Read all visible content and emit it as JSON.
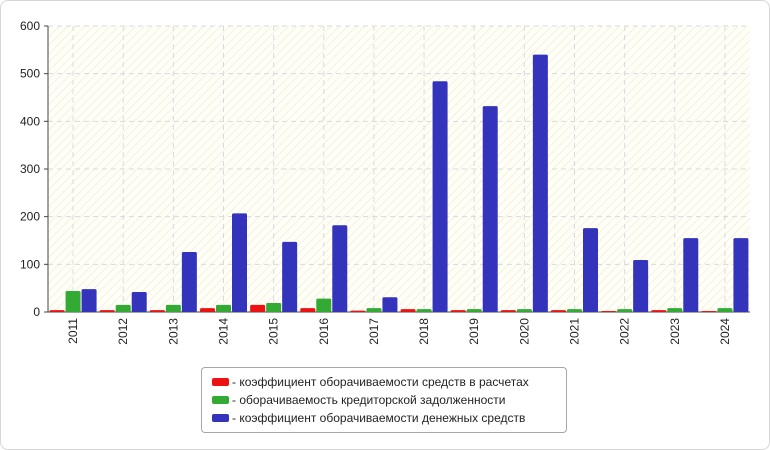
{
  "chart_data": {
    "type": "bar",
    "categories": [
      "2011",
      "2012",
      "2013",
      "2014",
      "2015",
      "2016",
      "2017",
      "2018",
      "2019",
      "2020",
      "2021",
      "2022",
      "2023",
      "2024"
    ],
    "series": [
      {
        "name": "- коэффициент оборачиваемости средств в расчетах",
        "color": "#ee1111",
        "values": [
          4,
          4,
          4,
          8,
          15,
          8,
          3,
          6,
          4,
          4,
          4,
          2,
          4,
          2
        ]
      },
      {
        "name": "- оборачиваемость кредиторской задолженности",
        "color": "#33aa33",
        "values": [
          44,
          15,
          15,
          15,
          19,
          28,
          8,
          6,
          6,
          6,
          6,
          6,
          8,
          8
        ]
      },
      {
        "name": "- коэффициент оборачиваемости денежных средств",
        "color": "#3333bb",
        "values": [
          48,
          42,
          126,
          207,
          147,
          182,
          31,
          484,
          432,
          540,
          176,
          109,
          155,
          155
        ]
      }
    ],
    "y_ticks": [
      "0",
      "100",
      "200",
      "300",
      "400",
      "500",
      "600"
    ],
    "ylim": [
      0,
      600
    ],
    "grid": true,
    "legend_position": "bottom"
  }
}
